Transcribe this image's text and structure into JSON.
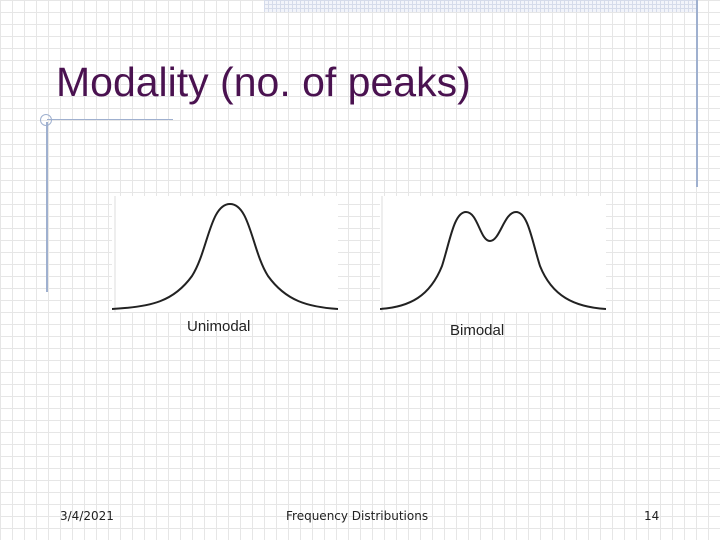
{
  "slide": {
    "title": "Modality (no. of peaks)",
    "figures": [
      {
        "label": "Unimodal",
        "shape": "single-peak-curve"
      },
      {
        "label": "Bimodal",
        "shape": "double-peak-curve"
      }
    ],
    "footer": {
      "date": "3/4/2021",
      "center": "Frequency Distributions",
      "page_number": "14"
    }
  },
  "colors": {
    "title": "#4a1250",
    "accent_rules": "#9fb0cf",
    "curve": "#222222"
  }
}
